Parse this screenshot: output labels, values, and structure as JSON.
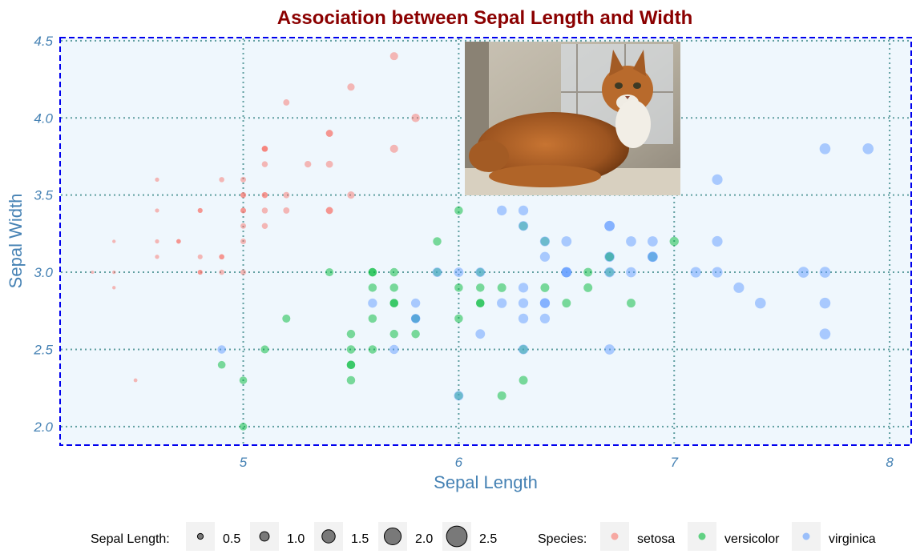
{
  "chart_data": {
    "type": "scatter",
    "title": "Association between Sepal Length and Width",
    "xlabel": "Sepal Length",
    "ylabel": "Sepal Width",
    "xlim": [
      4.15,
      8.1
    ],
    "ylim": [
      1.88,
      4.52
    ],
    "xticks": [
      5,
      6,
      7,
      8
    ],
    "yticks": [
      2.0,
      2.5,
      3.0,
      3.5,
      4.0,
      4.5
    ],
    "xtick_labels": [
      "5",
      "6",
      "7",
      "8"
    ],
    "ytick_labels": [
      "2.0",
      "2.5",
      "3.0",
      "3.5",
      "4.0",
      "4.5"
    ],
    "grid": true,
    "legend_position": "bottom",
    "size_legend": {
      "title": "Sepal Length:",
      "items": [
        {
          "label": "0.5",
          "value": 0.5
        },
        {
          "label": "1.0",
          "value": 1.0
        },
        {
          "label": "1.5",
          "value": 1.5
        },
        {
          "label": "2.0",
          "value": 2.0
        },
        {
          "label": "2.5",
          "value": 2.5
        }
      ]
    },
    "color_legend": {
      "title": "Species:",
      "items": [
        {
          "label": "setosa",
          "color": "#F8766D"
        },
        {
          "label": "versicolor",
          "color": "#00BA38"
        },
        {
          "label": "virginica",
          "color": "#619CFF"
        }
      ]
    },
    "series": [
      {
        "name": "setosa",
        "color": "#F8766D",
        "x": [
          5.1,
          4.9,
          4.7,
          4.6,
          5.0,
          5.4,
          4.6,
          5.0,
          4.4,
          4.9,
          5.4,
          4.8,
          4.8,
          4.3,
          5.8,
          5.7,
          5.4,
          5.1,
          5.7,
          5.1,
          5.4,
          5.1,
          4.6,
          5.1,
          4.8,
          5.0,
          5.0,
          5.2,
          5.2,
          4.7,
          4.8,
          5.4,
          5.2,
          5.5,
          4.9,
          5.0,
          5.5,
          4.9,
          4.4,
          5.1,
          5.0,
          4.5,
          4.4,
          5.0,
          5.1,
          4.8,
          5.1,
          4.6,
          5.3,
          5.0
        ],
        "y": [
          3.5,
          3.0,
          3.2,
          3.1,
          3.6,
          3.9,
          3.4,
          3.4,
          2.9,
          3.1,
          3.7,
          3.4,
          3.0,
          3.0,
          4.0,
          4.4,
          3.9,
          3.5,
          3.8,
          3.8,
          3.4,
          3.7,
          3.6,
          3.3,
          3.4,
          3.0,
          3.4,
          3.5,
          3.4,
          3.2,
          3.1,
          3.4,
          4.1,
          4.2,
          3.1,
          3.2,
          3.5,
          3.6,
          3.0,
          3.4,
          3.5,
          2.3,
          3.2,
          3.5,
          3.8,
          3.0,
          3.8,
          3.2,
          3.7,
          3.3
        ],
        "size": [
          1.1,
          0.9,
          0.7,
          0.6,
          1.0,
          1.4,
          0.6,
          1.0,
          0.4,
          0.9,
          1.4,
          0.8,
          0.8,
          0.3,
          1.8,
          1.7,
          1.4,
          1.1,
          1.7,
          1.1,
          1.4,
          1.1,
          0.6,
          1.1,
          0.8,
          1.0,
          1.0,
          1.2,
          1.2,
          0.7,
          0.8,
          1.4,
          1.2,
          1.5,
          0.9,
          1.0,
          1.5,
          0.9,
          0.4,
          1.1,
          1.0,
          0.5,
          0.4,
          1.0,
          1.1,
          0.8,
          1.1,
          0.6,
          1.3,
          1.0
        ]
      },
      {
        "name": "versicolor",
        "color": "#00BA38",
        "x": [
          7.0,
          6.4,
          6.9,
          5.5,
          6.5,
          5.7,
          6.3,
          4.9,
          6.6,
          5.2,
          5.0,
          5.9,
          6.0,
          6.1,
          5.6,
          6.7,
          5.6,
          5.8,
          6.2,
          5.6,
          5.9,
          6.1,
          6.3,
          6.1,
          6.4,
          6.6,
          6.8,
          6.7,
          6.0,
          5.7,
          5.5,
          5.5,
          5.8,
          6.0,
          5.4,
          6.0,
          6.7,
          6.3,
          5.6,
          5.5,
          5.5,
          6.1,
          5.8,
          5.0,
          5.6,
          5.7,
          5.7,
          6.2,
          5.1,
          5.7
        ],
        "y": [
          3.2,
          3.2,
          3.1,
          2.3,
          2.8,
          2.8,
          3.3,
          2.4,
          2.9,
          2.7,
          2.0,
          3.0,
          2.2,
          2.9,
          2.9,
          3.1,
          3.0,
          2.7,
          2.2,
          2.5,
          3.2,
          2.8,
          2.5,
          2.8,
          2.9,
          3.0,
          2.8,
          3.0,
          2.9,
          2.6,
          2.4,
          2.4,
          2.7,
          2.7,
          3.0,
          3.4,
          3.1,
          2.3,
          3.0,
          2.5,
          2.6,
          3.0,
          2.6,
          2.3,
          2.7,
          3.0,
          2.9,
          2.9,
          2.5,
          2.8
        ],
        "size": [
          2.0,
          1.9,
          2.0,
          1.8,
          1.9,
          1.8,
          1.9,
          1.6,
          1.9,
          1.7,
          1.6,
          1.8,
          1.8,
          1.8,
          1.8,
          1.9,
          1.8,
          1.8,
          1.9,
          1.8,
          1.8,
          1.8,
          1.9,
          1.8,
          1.9,
          1.9,
          1.9,
          1.9,
          1.8,
          1.8,
          1.8,
          1.8,
          1.8,
          1.8,
          1.7,
          1.8,
          1.9,
          1.9,
          1.8,
          1.8,
          1.8,
          1.8,
          1.8,
          1.6,
          1.8,
          1.8,
          1.8,
          1.9,
          1.7,
          1.8
        ]
      },
      {
        "name": "virginica",
        "color": "#619CFF",
        "x": [
          6.3,
          5.8,
          7.1,
          6.3,
          6.5,
          7.6,
          4.9,
          7.3,
          6.7,
          7.2,
          6.5,
          6.4,
          6.8,
          5.7,
          5.8,
          6.4,
          6.5,
          7.7,
          7.7,
          6.0,
          6.9,
          5.6,
          7.7,
          6.3,
          6.7,
          7.2,
          6.2,
          6.1,
          6.4,
          7.2,
          7.4,
          7.9,
          6.4,
          6.3,
          6.1,
          7.7,
          6.3,
          6.4,
          6.0,
          6.9,
          6.7,
          6.9,
          5.8,
          6.8,
          6.7,
          6.7,
          6.3,
          6.5,
          6.2,
          5.9
        ],
        "y": [
          3.3,
          2.7,
          3.0,
          2.9,
          3.0,
          3.0,
          2.5,
          2.9,
          2.5,
          3.6,
          3.2,
          2.7,
          3.0,
          2.5,
          2.8,
          3.2,
          3.0,
          3.8,
          2.6,
          2.2,
          3.2,
          2.8,
          2.8,
          2.7,
          3.3,
          3.2,
          2.8,
          3.0,
          2.8,
          3.0,
          2.8,
          3.8,
          2.8,
          2.8,
          2.6,
          3.0,
          3.4,
          3.1,
          3.0,
          3.1,
          3.1,
          3.1,
          2.7,
          3.2,
          3.3,
          3.0,
          2.5,
          3.0,
          3.4,
          3.0
        ],
        "size": [
          2.2,
          2.0,
          2.4,
          2.2,
          2.3,
          2.5,
          1.8,
          2.4,
          2.3,
          2.4,
          2.3,
          2.2,
          2.3,
          2.0,
          2.0,
          2.2,
          2.3,
          2.5,
          2.5,
          2.1,
          2.3,
          2.0,
          2.5,
          2.2,
          2.3,
          2.4,
          2.2,
          2.1,
          2.2,
          2.4,
          2.5,
          2.5,
          2.2,
          2.2,
          2.1,
          2.5,
          2.2,
          2.2,
          2.1,
          2.3,
          2.3,
          2.3,
          2.0,
          2.3,
          2.3,
          2.3,
          2.2,
          2.3,
          2.2,
          2.1
        ]
      }
    ]
  }
}
